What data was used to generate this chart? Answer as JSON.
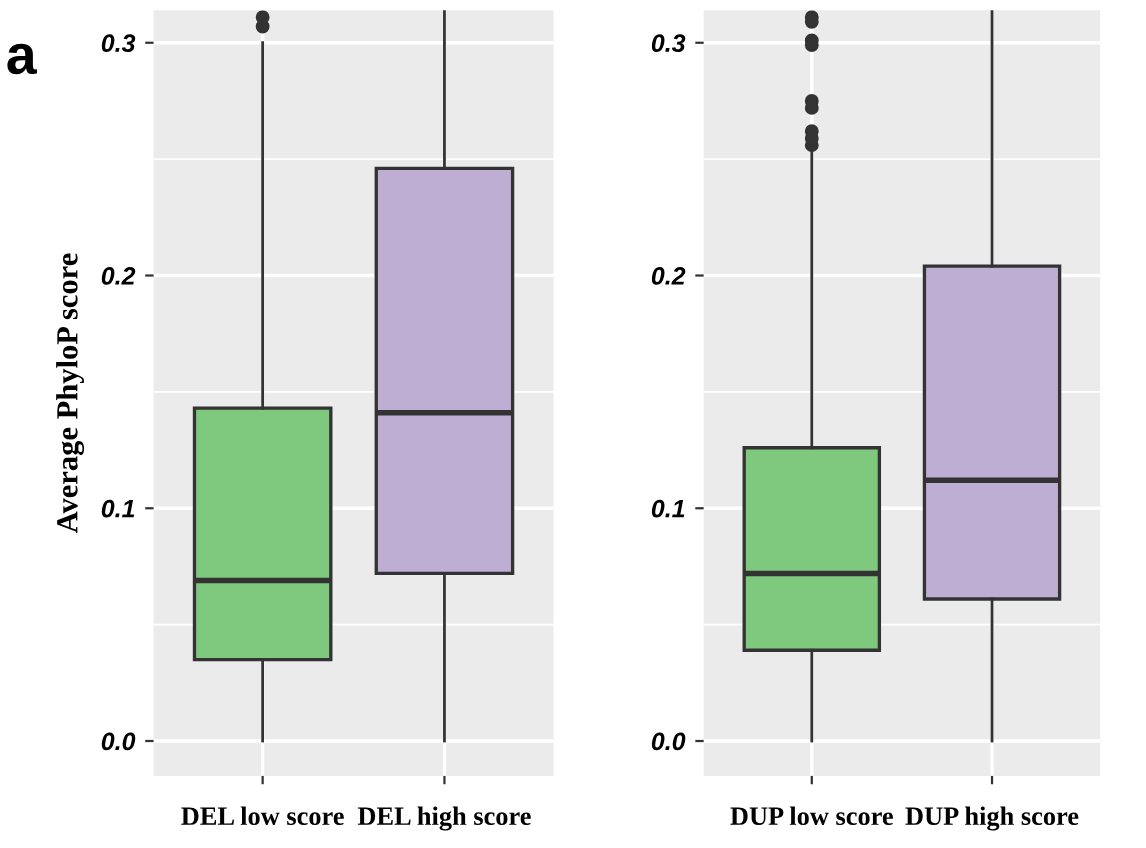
{
  "chart_data": [
    {
      "type": "box",
      "ylabel": "Average PhyloP score",
      "annotations": [
        "a"
      ],
      "categories": [
        "DEL low score",
        "DEL high score"
      ],
      "colors": [
        "#7fc97f",
        "#beaed4"
      ],
      "ylim": [
        -0.015,
        0.314
      ],
      "yticks": [
        {
          "value": 0,
          "label": "0.0"
        },
        0.1,
        0.2,
        0.3
      ],
      "grid": true,
      "boxes": [
        {
          "low": 0.0,
          "q1": 0.035,
          "median": 0.069,
          "q3": 0.143,
          "high": 0.3,
          "outliers": [
            0.307,
            0.311
          ]
        },
        {
          "low": 0.0,
          "q1": 0.072,
          "median": 0.141,
          "q3": 0.246,
          "high": 0.314
        }
      ]
    },
    {
      "type": "box",
      "categories": [
        "DUP low score",
        "DUP high score"
      ],
      "colors": [
        "#7fc97f",
        "#beaed4"
      ],
      "ylim": [
        -0.015,
        0.314
      ],
      "yticks": [
        {
          "value": 0,
          "label": "0.0"
        },
        0.1,
        0.2,
        0.3
      ],
      "grid": true,
      "boxes": [
        {
          "low": 0.0,
          "q1": 0.039,
          "median": 0.072,
          "q3": 0.126,
          "high": 0.253,
          "outliers": [
            0.256,
            0.259,
            0.262,
            0.272,
            0.275,
            0.299,
            0.301,
            0.309,
            0.311
          ]
        },
        {
          "low": 0.0,
          "q1": 0.061,
          "median": 0.112,
          "q3": 0.204,
          "high": 0.314
        }
      ]
    }
  ]
}
